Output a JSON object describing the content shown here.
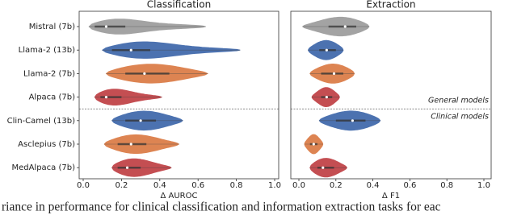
{
  "chart_data": [
    {
      "type": "violin",
      "title": "Classification",
      "x_label": "Δ AUROC",
      "categories": [
        "Mistral (7b)",
        "Llama-2 (13b)",
        "Llama-2 (7b)",
        "Alpaca (7b)",
        "Clin-Camel (13b)",
        "Asclepius (7b)",
        "MedAlpaca (7b)"
      ],
      "colors": [
        "#a3a3a3",
        "#4c72b0",
        "#dd8452",
        "#c44e52",
        "#4c72b0",
        "#dd8452",
        "#c44e52"
      ],
      "values": [
        {
          "min": 0.03,
          "q1": 0.06,
          "median": 0.12,
          "q3": 0.22,
          "max": 0.64
        },
        {
          "min": 0.1,
          "q1": 0.15,
          "median": 0.25,
          "q3": 0.35,
          "max": 0.82
        },
        {
          "min": 0.12,
          "q1": 0.22,
          "median": 0.32,
          "q3": 0.45,
          "max": 0.65
        },
        {
          "min": 0.06,
          "q1": 0.09,
          "median": 0.12,
          "q3": 0.2,
          "max": 0.41
        },
        {
          "min": 0.15,
          "q1": 0.22,
          "median": 0.3,
          "q3": 0.38,
          "max": 0.52
        },
        {
          "min": 0.11,
          "q1": 0.18,
          "median": 0.25,
          "q3": 0.33,
          "max": 0.5
        },
        {
          "min": 0.15,
          "q1": 0.18,
          "median": 0.23,
          "q3": 0.3,
          "max": 0.46
        }
      ],
      "xlim": [
        0,
        1
      ],
      "xticks": [
        {
          "value": 0,
          "label": "0.0"
        },
        0.2,
        0.4,
        0.6,
        0.8,
        {
          "value": 1,
          "label": "1.0"
        }
      ]
    },
    {
      "type": "violin",
      "title": "Extraction",
      "x_label": "Δ F1",
      "colors": [
        "#a3a3a3",
        "#4c72b0",
        "#dd8452",
        "#c44e52",
        "#4c72b0",
        "#dd8452",
        "#c44e52"
      ],
      "values": [
        {
          "min": 0.02,
          "q1": 0.16,
          "median": 0.25,
          "q3": 0.31,
          "max": 0.38
        },
        {
          "min": 0.05,
          "q1": 0.11,
          "median": 0.15,
          "q3": 0.2,
          "max": 0.24
        },
        {
          "min": 0.06,
          "q1": 0.12,
          "median": 0.19,
          "q3": 0.24,
          "max": 0.3
        },
        {
          "min": 0.07,
          "q1": 0.12,
          "median": 0.15,
          "q3": 0.18,
          "max": 0.22
        },
        {
          "min": 0.11,
          "q1": 0.2,
          "median": 0.29,
          "q3": 0.36,
          "max": 0.44
        },
        {
          "min": 0.03,
          "q1": 0.06,
          "median": 0.08,
          "q3": 0.1,
          "max": 0.13
        },
        {
          "min": 0.06,
          "q1": 0.1,
          "median": 0.13,
          "q3": 0.19,
          "max": 0.26
        }
      ],
      "xlim": [
        0,
        1
      ],
      "xticks": [
        {
          "value": 0,
          "label": "0.0"
        },
        0.2,
        0.4,
        0.6,
        0.8,
        {
          "value": 1,
          "label": "1.0"
        }
      ],
      "annotations": [
        "General models",
        "Clinical models"
      ]
    }
  ],
  "caption": "riance in performance for clinical classification and information extraction tasks for eac"
}
